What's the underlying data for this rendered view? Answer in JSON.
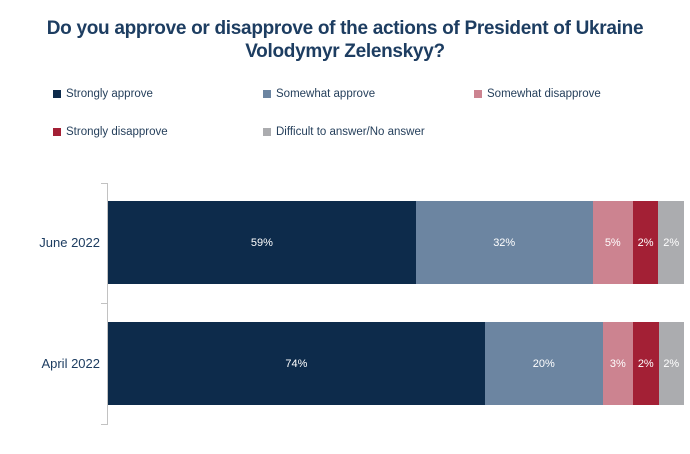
{
  "chart_data": {
    "type": "bar",
    "orientation": "horizontal",
    "stacked": true,
    "title": "Do you approve or disapprove of the actions of President of Ukraine Volodymyr Zelenskyy?",
    "categories": [
      "June 2022",
      "April 2022"
    ],
    "series": [
      {
        "name": "Strongly approve",
        "color": "#0D2B4B",
        "values": [
          59,
          74
        ]
      },
      {
        "name": "Somewhat approve",
        "color": "#6C85A1",
        "values": [
          32,
          20
        ]
      },
      {
        "name": "Somewhat disapprove",
        "color": "#CC8390",
        "values": [
          5,
          3
        ]
      },
      {
        "name": "Strongly disapprove",
        "color": "#A32035",
        "values": [
          2,
          2
        ]
      },
      {
        "name": "Difficult to answer/No answer",
        "color": "#ABACAF",
        "values": [
          2,
          2
        ]
      }
    ],
    "value_suffix": "%",
    "value_labels": [
      [
        "59%",
        "32%",
        "5%",
        "2%",
        "2%"
      ],
      [
        "74%",
        "20%",
        "3%",
        "2%",
        "2%"
      ]
    ],
    "xlim": [
      0,
      100
    ],
    "grid": false,
    "legend_position": "top",
    "bar_label_color": "#FFFFFF",
    "text_color": "#1D3D61",
    "axis_color": "#C2C2C2"
  }
}
